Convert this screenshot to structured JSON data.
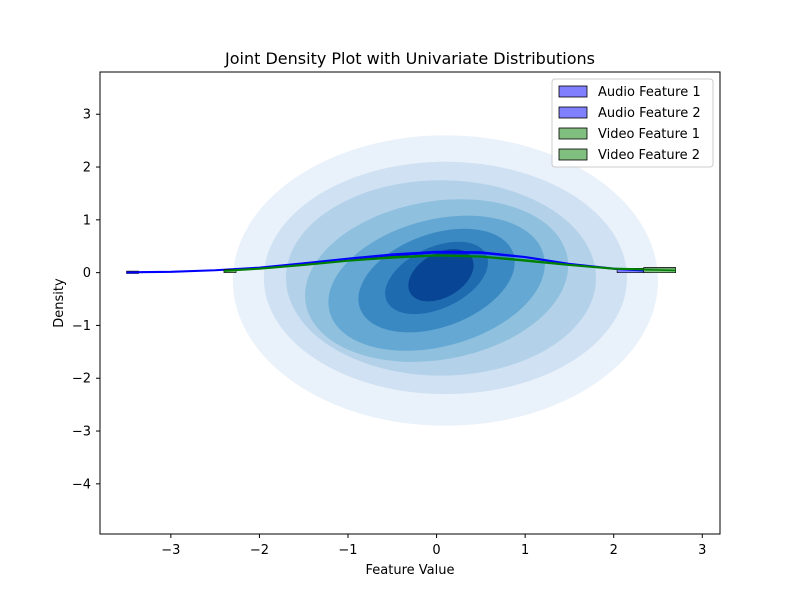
{
  "chart_data": {
    "type": "joint-density",
    "title": "Joint Density Plot with Univariate Distributions",
    "xlabel": "Feature Value",
    "ylabel": "Density",
    "xlim": [
      -3.8,
      3.2
    ],
    "ylim": [
      -4.95,
      3.8
    ],
    "xticks": [
      -3,
      -2,
      -1,
      0,
      1,
      2,
      3
    ],
    "yticks": [
      -4,
      -3,
      -2,
      -1,
      0,
      1,
      2,
      3
    ],
    "grid": false,
    "legend_position": "top-right",
    "colors": {
      "audio": "#0000ff",
      "video": "#008000",
      "audio_fill": "#8080ff",
      "video_fill": "#80bf80",
      "kde_levels": [
        "#e9f1fa",
        "#cfe1f2",
        "#b3d2ea",
        "#8fc0de",
        "#64a8d3",
        "#3b89c3",
        "#1f6bb0",
        "#084594"
      ]
    },
    "legend": [
      {
        "label": "Audio Feature 1",
        "color": "#8080ff"
      },
      {
        "label": "Audio Feature 2",
        "color": "#8080ff"
      },
      {
        "label": "Video Feature 1",
        "color": "#80bf80"
      },
      {
        "label": "Video Feature 2",
        "color": "#80bf80"
      }
    ],
    "kde_contours": [
      {
        "level": 1,
        "cx": 0.1,
        "cy": -0.15,
        "rx": 2.4,
        "ry": 2.75,
        "rot": 0
      },
      {
        "level": 2,
        "cx": 0.1,
        "cy": -0.1,
        "rx": 2.05,
        "ry": 2.2,
        "rot": 0
      },
      {
        "level": 3,
        "cx": 0.05,
        "cy": -0.1,
        "rx": 1.75,
        "ry": 1.85,
        "rot": 0
      },
      {
        "level": 4,
        "cx": 0.0,
        "cy": -0.15,
        "rx": 1.5,
        "ry": 1.5,
        "rot": -10
      },
      {
        "level": 5,
        "cx": 0.0,
        "cy": -0.2,
        "rx": 1.25,
        "ry": 1.2,
        "rot": -15
      },
      {
        "level": 6,
        "cx": 0.0,
        "cy": -0.15,
        "rx": 0.92,
        "ry": 0.88,
        "rot": -20
      },
      {
        "level": 7,
        "cx": 0.0,
        "cy": -0.1,
        "rx": 0.62,
        "ry": 0.58,
        "rot": -25
      },
      {
        "level": 8,
        "cx": 0.05,
        "cy": -0.05,
        "rx": 0.4,
        "ry": 0.42,
        "rot": -30
      }
    ],
    "series": [
      {
        "group": "audio",
        "x": [
          -3.5,
          -3.0,
          -2.5,
          -2.0,
          -1.5,
          -1.0,
          -0.5,
          0.0,
          0.5,
          1.0,
          1.5,
          2.0,
          2.4
        ],
        "y": [
          0.01,
          0.02,
          0.05,
          0.1,
          0.18,
          0.27,
          0.35,
          0.4,
          0.39,
          0.3,
          0.17,
          0.08,
          0.03
        ]
      },
      {
        "group": "audio",
        "x": [
          -3.5,
          -3.0,
          -2.5,
          -2.0,
          -1.5,
          -1.0,
          -0.5,
          0.0,
          0.5,
          1.0,
          1.5,
          2.0,
          2.4
        ],
        "y": [
          0.0,
          0.01,
          0.04,
          0.09,
          0.16,
          0.24,
          0.32,
          0.38,
          0.37,
          0.29,
          0.16,
          0.07,
          0.03
        ]
      },
      {
        "group": "video",
        "x": [
          -2.4,
          -2.0,
          -1.5,
          -1.0,
          -0.5,
          0.0,
          0.5,
          1.0,
          1.5,
          2.0,
          2.7
        ],
        "y": [
          0.04,
          0.08,
          0.15,
          0.23,
          0.3,
          0.33,
          0.31,
          0.24,
          0.15,
          0.08,
          0.05
        ]
      },
      {
        "group": "video",
        "x": [
          -2.4,
          -2.0,
          -1.5,
          -1.0,
          -0.5,
          0.0,
          0.5,
          1.0,
          1.5,
          2.0,
          2.7
        ],
        "y": [
          0.03,
          0.07,
          0.14,
          0.22,
          0.28,
          0.32,
          0.3,
          0.22,
          0.14,
          0.07,
          0.04
        ]
      }
    ]
  }
}
